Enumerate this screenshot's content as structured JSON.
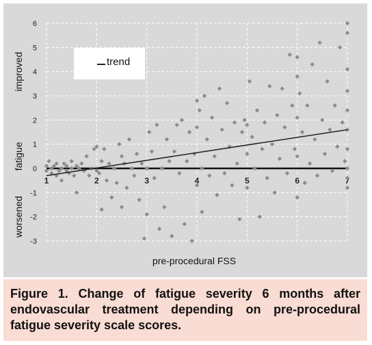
{
  "figure": {
    "caption": "Figure 1. Change of fatigue severity 6 months after endovascular treatment depending on pre-procedural fatigue severity scale scores."
  },
  "colors": {
    "plot_background": "#d9d9d9",
    "caption_background": "#f9dcd3",
    "marker": "#8c8c8c",
    "trend": "#222222"
  },
  "chart_data": {
    "type": "scatter",
    "title": "",
    "xlabel": "pre-procedural FSS",
    "ylabel_parts": [
      "worsened",
      "fatigue",
      "improved"
    ],
    "xlim": [
      1,
      7
    ],
    "ylim": [
      -3,
      6
    ],
    "x_ticks": [
      "1",
      "2",
      "3",
      "4",
      "5",
      "6",
      "7"
    ],
    "y_ticks": [
      "-3",
      "-2",
      "-1",
      "0",
      "1",
      "2",
      "3",
      "4",
      "5",
      "6"
    ],
    "grid": "dashed",
    "legend": {
      "entries": [
        "trend"
      ],
      "placement": "top-left"
    },
    "trend": {
      "x": [
        1,
        7
      ],
      "y": [
        -0.3,
        1.6
      ]
    },
    "zero_line": 0,
    "points": [
      [
        1.0,
        0.1
      ],
      [
        1.0,
        -0.1
      ],
      [
        1.05,
        0.3
      ],
      [
        1.1,
        0.0
      ],
      [
        1.1,
        -0.2
      ],
      [
        1.15,
        0.1
      ],
      [
        1.2,
        -0.3
      ],
      [
        1.2,
        0.2
      ],
      [
        1.25,
        -0.1
      ],
      [
        1.3,
        0.0
      ],
      [
        1.3,
        -0.5
      ],
      [
        1.35,
        0.2
      ],
      [
        1.4,
        0.1
      ],
      [
        1.4,
        -0.1
      ],
      [
        1.45,
        -0.2
      ],
      [
        1.5,
        0.0
      ],
      [
        1.5,
        0.3
      ],
      [
        1.55,
        -0.3
      ],
      [
        1.6,
        0.1
      ],
      [
        1.6,
        -1.0
      ],
      [
        1.65,
        0.0
      ],
      [
        1.7,
        0.2
      ],
      [
        1.75,
        -0.1
      ],
      [
        1.8,
        0.5
      ],
      [
        1.85,
        -0.3
      ],
      [
        1.9,
        0.0
      ],
      [
        1.95,
        0.8
      ],
      [
        2.0,
        0.9
      ],
      [
        2.0,
        -0.1
      ],
      [
        2.05,
        -0.2
      ],
      [
        2.1,
        0.3
      ],
      [
        2.1,
        -1.7
      ],
      [
        2.15,
        0.8
      ],
      [
        2.2,
        -0.5
      ],
      [
        2.25,
        0.2
      ],
      [
        2.3,
        -1.2
      ],
      [
        2.35,
        0.0
      ],
      [
        2.4,
        -0.6
      ],
      [
        2.45,
        1.0
      ],
      [
        2.5,
        0.5
      ],
      [
        2.5,
        -1.6
      ],
      [
        2.55,
        0.2
      ],
      [
        2.6,
        -0.8
      ],
      [
        2.65,
        1.2
      ],
      [
        2.7,
        0.0
      ],
      [
        2.75,
        -0.3
      ],
      [
        2.8,
        0.6
      ],
      [
        2.85,
        -1.3
      ],
      [
        2.9,
        0.2
      ],
      [
        2.95,
        -2.9
      ],
      [
        3.0,
        0.0
      ],
      [
        3.0,
        -1.9
      ],
      [
        3.05,
        1.5
      ],
      [
        3.1,
        0.7
      ],
      [
        3.15,
        -0.4
      ],
      [
        3.2,
        1.8
      ],
      [
        3.25,
        -2.5
      ],
      [
        3.3,
        0.0
      ],
      [
        3.35,
        -1.6
      ],
      [
        3.4,
        1.2
      ],
      [
        3.45,
        0.3
      ],
      [
        3.5,
        -2.8
      ],
      [
        3.55,
        0.7
      ],
      [
        3.6,
        1.8
      ],
      [
        3.65,
        -0.2
      ],
      [
        3.7,
        2.0
      ],
      [
        3.75,
        -2.3
      ],
      [
        3.8,
        0.3
      ],
      [
        3.85,
        1.5
      ],
      [
        3.9,
        -3.0
      ],
      [
        3.95,
        0.6
      ],
      [
        4.0,
        2.8
      ],
      [
        4.0,
        1.7
      ],
      [
        4.0,
        -0.7
      ],
      [
        4.05,
        2.4
      ],
      [
        4.1,
        0.0
      ],
      [
        4.1,
        -1.8
      ],
      [
        4.15,
        3.0
      ],
      [
        4.2,
        1.2
      ],
      [
        4.25,
        -0.3
      ],
      [
        4.3,
        2.1
      ],
      [
        4.35,
        0.5
      ],
      [
        4.4,
        -1.1
      ],
      [
        4.45,
        3.3
      ],
      [
        4.5,
        1.6
      ],
      [
        4.55,
        -0.2
      ],
      [
        4.6,
        2.7
      ],
      [
        4.65,
        0.9
      ],
      [
        4.7,
        -0.7
      ],
      [
        4.75,
        1.9
      ],
      [
        4.8,
        0.2
      ],
      [
        4.85,
        -2.1
      ],
      [
        4.9,
        1.5
      ],
      [
        4.95,
        2.0
      ],
      [
        5.0,
        0.6
      ],
      [
        5.0,
        1.8
      ],
      [
        5.0,
        -0.8
      ],
      [
        5.05,
        3.6
      ],
      [
        5.1,
        1.3
      ],
      [
        5.15,
        0.0
      ],
      [
        5.2,
        2.4
      ],
      [
        5.25,
        -2.0
      ],
      [
        5.3,
        0.8
      ],
      [
        5.35,
        1.9
      ],
      [
        5.4,
        -0.4
      ],
      [
        5.45,
        3.4
      ],
      [
        5.5,
        1.0
      ],
      [
        5.55,
        -1.0
      ],
      [
        5.6,
        2.2
      ],
      [
        5.65,
        0.4
      ],
      [
        5.7,
        3.3
      ],
      [
        5.75,
        1.7
      ],
      [
        5.8,
        -0.2
      ],
      [
        5.85,
        4.7
      ],
      [
        5.9,
        2.6
      ],
      [
        5.95,
        0.8
      ],
      [
        6.0,
        4.6
      ],
      [
        6.0,
        3.8
      ],
      [
        6.0,
        2.1
      ],
      [
        6.0,
        0.5
      ],
      [
        6.0,
        -1.2
      ],
      [
        6.05,
        3.1
      ],
      [
        6.1,
        1.5
      ],
      [
        6.15,
        -0.6
      ],
      [
        6.2,
        2.6
      ],
      [
        6.25,
        0.2
      ],
      [
        6.3,
        4.3
      ],
      [
        6.35,
        1.2
      ],
      [
        6.4,
        -0.3
      ],
      [
        6.45,
        5.2
      ],
      [
        6.5,
        2.0
      ],
      [
        6.55,
        0.6
      ],
      [
        6.6,
        3.6
      ],
      [
        6.65,
        1.6
      ],
      [
        6.7,
        -0.1
      ],
      [
        6.75,
        2.6
      ],
      [
        6.8,
        0.9
      ],
      [
        6.85,
        5.0
      ],
      [
        6.9,
        1.9
      ],
      [
        6.95,
        0.3
      ],
      [
        7.0,
        6.0
      ],
      [
        7.0,
        5.6
      ],
      [
        7.0,
        4.1
      ],
      [
        7.0,
        3.2
      ],
      [
        7.0,
        2.4
      ],
      [
        7.0,
        1.6
      ],
      [
        7.0,
        0.8
      ],
      [
        7.0,
        0.0
      ],
      [
        7.0,
        -0.4
      ],
      [
        7.0,
        -0.8
      ]
    ]
  }
}
